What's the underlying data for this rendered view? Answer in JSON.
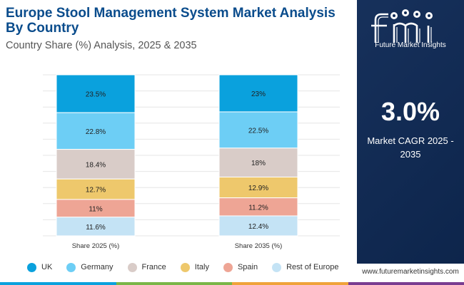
{
  "header": {
    "title": "Europe Stool Management System Market Analysis By Country",
    "subtitle": "Country Share (%) Analysis, 2025 & 2035"
  },
  "chart_data": {
    "type": "bar",
    "stacked": true,
    "categories": [
      "Share 2025 (%)",
      "Share 2035 (%)"
    ],
    "series": [
      {
        "name": "UK",
        "color": "#0aa1dd",
        "values": [
          23.5,
          23
        ],
        "labels": [
          "23.5%",
          "23%"
        ]
      },
      {
        "name": "Germany",
        "color": "#6dcef5",
        "values": [
          22.8,
          22.5
        ],
        "labels": [
          "22.8%",
          "22.5%"
        ]
      },
      {
        "name": "France",
        "color": "#d9ccc8",
        "values": [
          18.4,
          18
        ],
        "labels": [
          "18.4%",
          "18%"
        ]
      },
      {
        "name": "Italy",
        "color": "#eec86c",
        "values": [
          12.7,
          12.9
        ],
        "labels": [
          "12.7%",
          "12.9%"
        ]
      },
      {
        "name": "Spain",
        "color": "#eea595",
        "values": [
          11,
          11.2
        ],
        "labels": [
          "11%",
          "11.2%"
        ]
      },
      {
        "name": "Rest of Europe",
        "color": "#c4e3f5",
        "values": [
          11.6,
          12.4
        ],
        "labels": [
          "11.6%",
          "12.4%"
        ]
      }
    ],
    "ylim": [
      0,
      100
    ],
    "grid": true,
    "legend_position": "bottom"
  },
  "sidebar": {
    "logo_text": "Future Market Insights",
    "cagr_value": "3.0%",
    "cagr_label": "Market CAGR 2025 - 2035",
    "background": "#0f2a56"
  },
  "footer": {
    "website": "www.futuremarketinsights.com",
    "line_colors": [
      "#0aa1dd",
      "#7ab648",
      "#f0a33a",
      "#7a3d91"
    ]
  }
}
